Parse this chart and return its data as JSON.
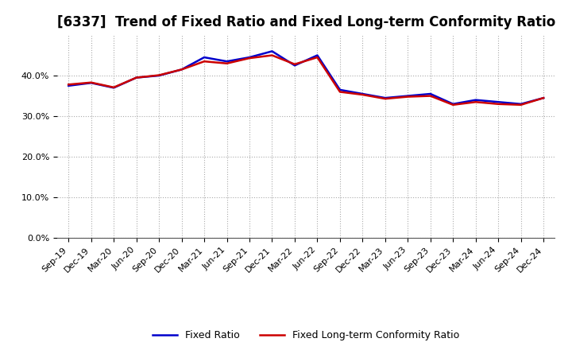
{
  "title": "[6337]  Trend of Fixed Ratio and Fixed Long-term Conformity Ratio",
  "x_labels": [
    "Sep-19",
    "Dec-19",
    "Mar-20",
    "Jun-20",
    "Sep-20",
    "Dec-20",
    "Mar-21",
    "Jun-21",
    "Sep-21",
    "Dec-21",
    "Mar-22",
    "Jun-22",
    "Sep-22",
    "Dec-22",
    "Mar-23",
    "Jun-23",
    "Sep-23",
    "Dec-23",
    "Mar-24",
    "Jun-24",
    "Sep-24",
    "Dec-24"
  ],
  "fixed_ratio": [
    37.5,
    38.2,
    37.0,
    39.5,
    40.0,
    41.5,
    44.5,
    43.5,
    44.5,
    46.0,
    42.5,
    45.0,
    36.5,
    35.5,
    34.5,
    35.0,
    35.5,
    33.0,
    34.0,
    33.5,
    33.0,
    34.5
  ],
  "fixed_lt_ratio": [
    37.8,
    38.3,
    37.1,
    39.5,
    40.1,
    41.5,
    43.5,
    43.0,
    44.3,
    45.0,
    42.8,
    44.5,
    36.0,
    35.3,
    34.3,
    34.8,
    35.0,
    32.8,
    33.5,
    33.0,
    32.8,
    34.5
  ],
  "fixed_ratio_color": "#0000cc",
  "fixed_lt_ratio_color": "#cc0000",
  "ylim": [
    0,
    50
  ],
  "yticks": [
    0,
    10,
    20,
    30,
    40
  ],
  "background_color": "#ffffff",
  "grid_color": "#aaaaaa",
  "title_fontsize": 12,
  "tick_fontsize": 8,
  "legend_labels": [
    "Fixed Ratio",
    "Fixed Long-term Conformity Ratio"
  ]
}
